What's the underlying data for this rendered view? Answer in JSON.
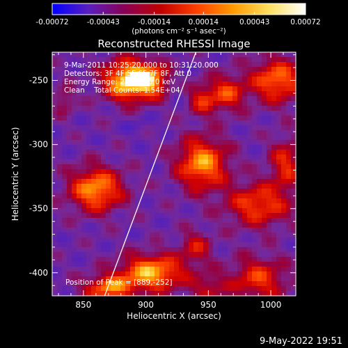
{
  "colorbar": {
    "tick_labels": [
      "-0.00072",
      "-0.00043",
      "-0.00014",
      "0.00014",
      "0.00043",
      "0.00072"
    ],
    "tick_values": [
      -0.00072,
      -0.00043,
      -0.00014,
      0.00014,
      0.00043,
      0.00072
    ],
    "range": [
      -0.00072,
      0.00072
    ],
    "unit_label": "(photons cm⁻² s⁻¹ asec⁻²)",
    "colors": [
      "#0000ff",
      "#5a1fbf",
      "#8a0055",
      "#c00000",
      "#ff4000",
      "#ff9a00",
      "#ffe060",
      "#ffffff"
    ]
  },
  "chart_data": {
    "type": "heatmap",
    "title": "Reconstructed RHESSI Image",
    "xlabel": "Heliocentric X (arcsec)",
    "ylabel": "Heliocentric Y (arcsec)",
    "xlim": [
      825,
      1020
    ],
    "ylim": [
      -418,
      -228
    ],
    "x_ticks": [
      850,
      900,
      950,
      1000
    ],
    "y_ticks": [
      -250,
      -300,
      -350,
      -400
    ],
    "annotations": [
      "9-Mar-2011 10:25:20.000 to 10:31:20.000",
      "Detectors: 3F 4F 5F 6F 7F 8F, Att 0",
      "Energy Range: 25.0 - 50.0 keV",
      "Clean    Total Counts: 1.54E+04"
    ],
    "peak_label": "Position of Peak = [889,-252]",
    "peak": [
      889,
      -252
    ],
    "limb_line": [
      [
        867,
        -418
      ],
      [
        940,
        -228
      ]
    ],
    "sources": [
      {
        "x": 886,
        "y": -250,
        "sx": 14,
        "sy": 11,
        "amp": 1.0
      },
      {
        "x": 905,
        "y": -250,
        "sx": 10,
        "sy": 9,
        "amp": 0.6
      },
      {
        "x": 860,
        "y": -335,
        "sx": 15,
        "sy": 12,
        "amp": 0.8
      },
      {
        "x": 945,
        "y": -315,
        "sx": 14,
        "sy": 14,
        "amp": 0.8
      },
      {
        "x": 965,
        "y": -260,
        "sx": 10,
        "sy": 10,
        "amp": 0.55
      },
      {
        "x": 945,
        "y": -265,
        "sx": 8,
        "sy": 9,
        "amp": 0.45
      },
      {
        "x": 1005,
        "y": -250,
        "sx": 15,
        "sy": 12,
        "amp": 0.7
      },
      {
        "x": 990,
        "y": -347,
        "sx": 18,
        "sy": 12,
        "amp": 0.6
      },
      {
        "x": 1012,
        "y": -315,
        "sx": 9,
        "sy": 14,
        "amp": 0.5
      },
      {
        "x": 905,
        "y": -400,
        "sx": 18,
        "sy": 10,
        "amp": 0.85
      },
      {
        "x": 870,
        "y": -412,
        "sx": 14,
        "sy": 7,
        "amp": 0.7
      },
      {
        "x": 940,
        "y": -380,
        "sx": 9,
        "sy": 9,
        "amp": 0.4
      },
      {
        "x": 990,
        "y": -405,
        "sx": 16,
        "sy": 12,
        "amp": 0.55
      },
      {
        "x": 950,
        "y": -412,
        "sx": 10,
        "sy": 8,
        "amp": 0.35
      },
      {
        "x": 835,
        "y": -265,
        "sx": 6,
        "sy": 8,
        "amp": 0.3
      }
    ]
  },
  "footer": {
    "date": "9-May-2022 19:51"
  }
}
